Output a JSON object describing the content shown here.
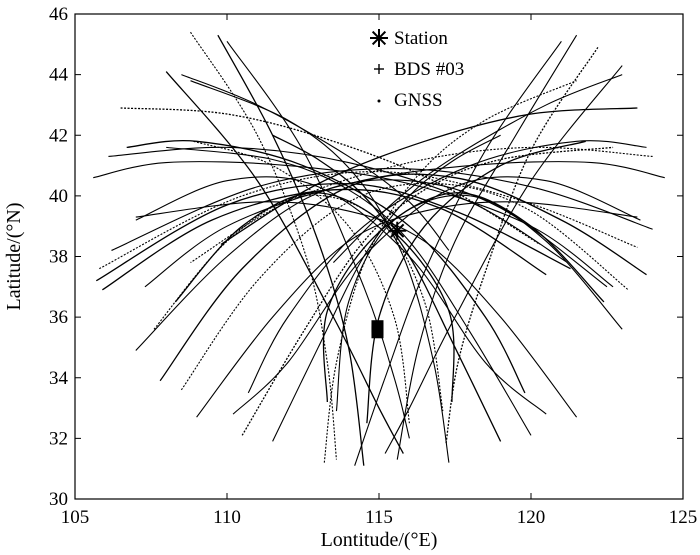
{
  "chart_data": {
    "type": "scatter",
    "xlabel": "Lontitude/(°E)",
    "ylabel": "Latitude/(°N)",
    "xlim": [
      105,
      125
    ],
    "ylim": [
      30,
      46
    ],
    "xticks": [
      105,
      110,
      115,
      120,
      125
    ],
    "yticks": [
      30,
      32,
      34,
      36,
      38,
      40,
      42,
      44,
      46
    ],
    "grid": false,
    "legend_position": "top-center",
    "legend": [
      {
        "symbol": "✱",
        "label": "Station"
      },
      {
        "symbol": "+",
        "label": "BDS #03"
      },
      {
        "symbol": "·",
        "label": "GNSS"
      }
    ],
    "series": [
      {
        "name": "Station",
        "marker": "asterisk",
        "points": [
          [
            115.6,
            38.85
          ]
        ]
      },
      {
        "name": "BDS #03",
        "marker": "plus",
        "points": [
          [
            114.95,
            35.6
          ],
          [
            114.95,
            35.5
          ],
          [
            114.95,
            35.7
          ]
        ]
      },
      {
        "name": "GNSS",
        "marker": "dot",
        "tracks": [
          [
            [
              105.7,
              37.2
            ],
            [
              110.0,
              39.7
            ],
            [
              114.0,
              40.4
            ],
            [
              117.5,
              39.5
            ],
            [
              121.3,
              37.6
            ]
          ],
          [
            [
              105.8,
              37.6
            ],
            [
              110.5,
              40.0
            ],
            [
              115.0,
              40.8
            ],
            [
              119.5,
              39.9
            ],
            [
              123.5,
              38.3
            ]
          ],
          [
            [
              106.2,
              38.2
            ],
            [
              111.0,
              40.3
            ],
            [
              115.5,
              40.9
            ],
            [
              120.0,
              40.3
            ],
            [
              124.0,
              38.9
            ]
          ],
          [
            [
              105.9,
              36.9
            ],
            [
              109.5,
              39.2
            ],
            [
              113.5,
              40.2
            ],
            [
              117.0,
              39.6
            ],
            [
              120.5,
              37.4
            ]
          ],
          [
            [
              107.0,
              34.9
            ],
            [
              110.0,
              38.0
            ],
            [
              113.0,
              40.1
            ],
            [
              116.0,
              40.5
            ],
            [
              119.0,
              39.6
            ],
            [
              122.5,
              37.0
            ]
          ],
          [
            [
              108.5,
              33.6
            ],
            [
              111.0,
              37.2
            ],
            [
              114.0,
              39.8
            ],
            [
              117.0,
              40.4
            ],
            [
              120.0,
              39.5
            ],
            [
              123.2,
              36.9
            ]
          ],
          [
            [
              107.8,
              33.9
            ],
            [
              110.5,
              37.6
            ],
            [
              114.0,
              40.3
            ],
            [
              117.5,
              40.6
            ],
            [
              121.0,
              39.2
            ],
            [
              123.8,
              37.4
            ]
          ],
          [
            [
              105.6,
              40.6
            ],
            [
              108.0,
              41.1
            ],
            [
              112.0,
              41.0
            ],
            [
              116.0,
              40.4
            ],
            [
              120.0,
              39.0
            ],
            [
              122.7,
              37.0
            ]
          ],
          [
            [
              106.1,
              41.3
            ],
            [
              110.0,
              41.6
            ],
            [
              114.0,
              41.1
            ],
            [
              118.0,
              39.8
            ],
            [
              121.2,
              37.8
            ]
          ],
          [
            [
              106.5,
              42.9
            ],
            [
              110.0,
              42.7
            ],
            [
              113.5,
              41.8
            ],
            [
              117.0,
              40.4
            ],
            [
              120.3,
              38.4
            ]
          ],
          [
            [
              108.5,
              44.0
            ],
            [
              111.0,
              43.0
            ],
            [
              114.0,
              41.3
            ],
            [
              116.0,
              39.8
            ],
            [
              117.3,
              38.2
            ]
          ],
          [
            [
              123.0,
              44.0
            ],
            [
              120.5,
              43.0
            ],
            [
              117.5,
              41.3
            ],
            [
              115.5,
              39.8
            ],
            [
              113.5,
              37.8
            ]
          ],
          [
            [
              123.5,
              42.9
            ],
            [
              120.0,
              42.7
            ],
            [
              116.5,
              41.8
            ],
            [
              113.0,
              40.4
            ],
            [
              109.8,
              38.4
            ]
          ],
          [
            [
              124.0,
              41.3
            ],
            [
              120.0,
              41.6
            ],
            [
              116.0,
              41.1
            ],
            [
              112.0,
              39.8
            ],
            [
              108.8,
              37.8
            ]
          ],
          [
            [
              124.4,
              40.6
            ],
            [
              122.0,
              41.1
            ],
            [
              118.0,
              41.0
            ],
            [
              114.0,
              40.4
            ],
            [
              110.0,
              39.0
            ],
            [
              107.3,
              37.0
            ]
          ],
          [
            [
              109.7,
              45.3
            ],
            [
              111.5,
              42.0
            ],
            [
              113.0,
              38.5
            ],
            [
              114.0,
              35.0
            ],
            [
              114.5,
              31.1
            ]
          ],
          [
            [
              110.0,
              45.1
            ],
            [
              112.5,
              41.5
            ],
            [
              114.5,
              37.0
            ],
            [
              115.5,
              34.0
            ],
            [
              116.0,
              32.0
            ]
          ],
          [
            [
              108.8,
              45.4
            ],
            [
              111.0,
              42.0
            ],
            [
              112.6,
              38.0
            ],
            [
              113.3,
              34.5
            ],
            [
              113.6,
              31.3
            ]
          ],
          [
            [
              108.0,
              44.1
            ],
            [
              111.0,
              40.5
            ],
            [
              113.5,
              36.0
            ],
            [
              115.0,
              33.0
            ],
            [
              115.8,
              31.5
            ]
          ],
          [
            [
              121.5,
              45.3
            ],
            [
              119.5,
              42.0
            ],
            [
              117.5,
              38.5
            ],
            [
              116.3,
              35.0
            ],
            [
              115.6,
              31.3
            ]
          ],
          [
            [
              121.0,
              45.1
            ],
            [
              118.5,
              41.5
            ],
            [
              116.5,
              37.5
            ],
            [
              115.2,
              34.0
            ],
            [
              114.2,
              31.1
            ]
          ],
          [
            [
              122.2,
              44.9
            ],
            [
              120.0,
              41.5
            ],
            [
              118.5,
              37.5
            ],
            [
              117.6,
              34.5
            ],
            [
              117.2,
              31.8
            ]
          ],
          [
            [
              123.0,
              44.3
            ],
            [
              120.0,
              40.5
            ],
            [
              117.5,
              36.0
            ],
            [
              116.0,
              33.0
            ],
            [
              115.2,
              31.5
            ]
          ],
          [
            [
              107.0,
              39.2
            ],
            [
              110.0,
              40.5
            ],
            [
              113.0,
              40.3
            ],
            [
              116.0,
              38.0
            ],
            [
              118.5,
              34.5
            ],
            [
              120.5,
              32.8
            ]
          ],
          [
            [
              108.3,
              36.5
            ],
            [
              110.5,
              39.0
            ],
            [
              113.0,
              40.1
            ],
            [
              115.5,
              38.8
            ],
            [
              117.3,
              36.2
            ],
            [
              117.4,
              33.2
            ]
          ],
          [
            [
              107.6,
              35.6
            ],
            [
              110.0,
              38.5
            ],
            [
              112.5,
              40.0
            ],
            [
              115.0,
              39.2
            ],
            [
              116.5,
              36.5
            ],
            [
              117.1,
              32.9
            ]
          ],
          [
            [
              123.6,
              39.2
            ],
            [
              120.5,
              40.5
            ],
            [
              117.5,
              40.3
            ],
            [
              114.5,
              38.0
            ],
            [
              112.0,
              34.5
            ],
            [
              110.2,
              32.8
            ]
          ],
          [
            [
              122.4,
              36.5
            ],
            [
              120.0,
              39.0
            ],
            [
              117.5,
              40.1
            ],
            [
              115.0,
              38.8
            ],
            [
              113.3,
              36.2
            ],
            [
              113.3,
              33.2
            ]
          ],
          [
            [
              123.0,
              35.6
            ],
            [
              120.5,
              38.5
            ],
            [
              118.0,
              40.0
            ],
            [
              115.5,
              39.2
            ],
            [
              114.0,
              36.5
            ],
            [
              113.6,
              32.9
            ]
          ],
          [
            [
              108.9,
              41.8
            ],
            [
              111.5,
              41.0
            ],
            [
              114.0,
              39.0
            ],
            [
              115.5,
              36.0
            ],
            [
              116.0,
              32.5
            ]
          ],
          [
            [
              121.8,
              41.8
            ],
            [
              119.0,
              41.0
            ],
            [
              116.5,
              39.0
            ],
            [
              115.0,
              36.0
            ],
            [
              114.6,
              32.5
            ]
          ],
          [
            [
              109.0,
              32.7
            ],
            [
              111.5,
              36.0
            ],
            [
              114.0,
              38.5
            ],
            [
              116.5,
              39.5
            ],
            [
              119.5,
              39.8
            ],
            [
              123.5,
              39.3
            ]
          ],
          [
            [
              121.5,
              32.7
            ],
            [
              119.0,
              36.0
            ],
            [
              116.5,
              38.5
            ],
            [
              114.0,
              39.5
            ],
            [
              111.0,
              39.8
            ],
            [
              107.0,
              39.3
            ]
          ],
          [
            [
              110.5,
              32.1
            ],
            [
              112.5,
              35.5
            ],
            [
              114.5,
              38.5
            ],
            [
              116.5,
              40.2
            ],
            [
              119.0,
              41.2
            ],
            [
              122.7,
              41.6
            ]
          ],
          [
            [
              120.0,
              32.1
            ],
            [
              118.0,
              35.5
            ],
            [
              116.0,
              38.5
            ],
            [
              114.0,
              40.2
            ],
            [
              111.5,
              41.2
            ],
            [
              108.0,
              41.6
            ]
          ],
          [
            [
              111.5,
              31.9
            ],
            [
              113.0,
              35.0
            ],
            [
              114.5,
              38.0
            ],
            [
              116.0,
              40.0
            ],
            [
              117.5,
              41.2
            ],
            [
              119.0,
              42.0
            ]
          ],
          [
            [
              119.0,
              31.9
            ],
            [
              117.5,
              35.0
            ],
            [
              116.0,
              38.0
            ],
            [
              114.5,
              40.0
            ],
            [
              113.0,
              41.2
            ],
            [
              111.5,
              42.0
            ]
          ],
          [
            [
              113.2,
              31.2
            ],
            [
              113.6,
              34.5
            ],
            [
              114.6,
              38.0
            ],
            [
              116.3,
              40.7
            ],
            [
              118.5,
              42.5
            ],
            [
              121.5,
              43.8
            ]
          ],
          [
            [
              117.3,
              31.2
            ],
            [
              116.8,
              34.5
            ],
            [
              115.8,
              38.0
            ],
            [
              114.2,
              40.7
            ],
            [
              112.0,
              42.5
            ],
            [
              108.8,
              43.8
            ]
          ],
          [
            [
              106.7,
              41.6
            ],
            [
              109.0,
              41.8
            ],
            [
              112.5,
              41.0
            ],
            [
              116.0,
              39.0
            ],
            [
              118.5,
              36.0
            ],
            [
              119.8,
              33.5
            ]
          ],
          [
            [
              123.8,
              41.6
            ],
            [
              121.5,
              41.8
            ],
            [
              118.0,
              41.0
            ],
            [
              114.5,
              39.0
            ],
            [
              112.0,
              36.0
            ],
            [
              110.7,
              33.5
            ]
          ]
        ]
      }
    ]
  }
}
